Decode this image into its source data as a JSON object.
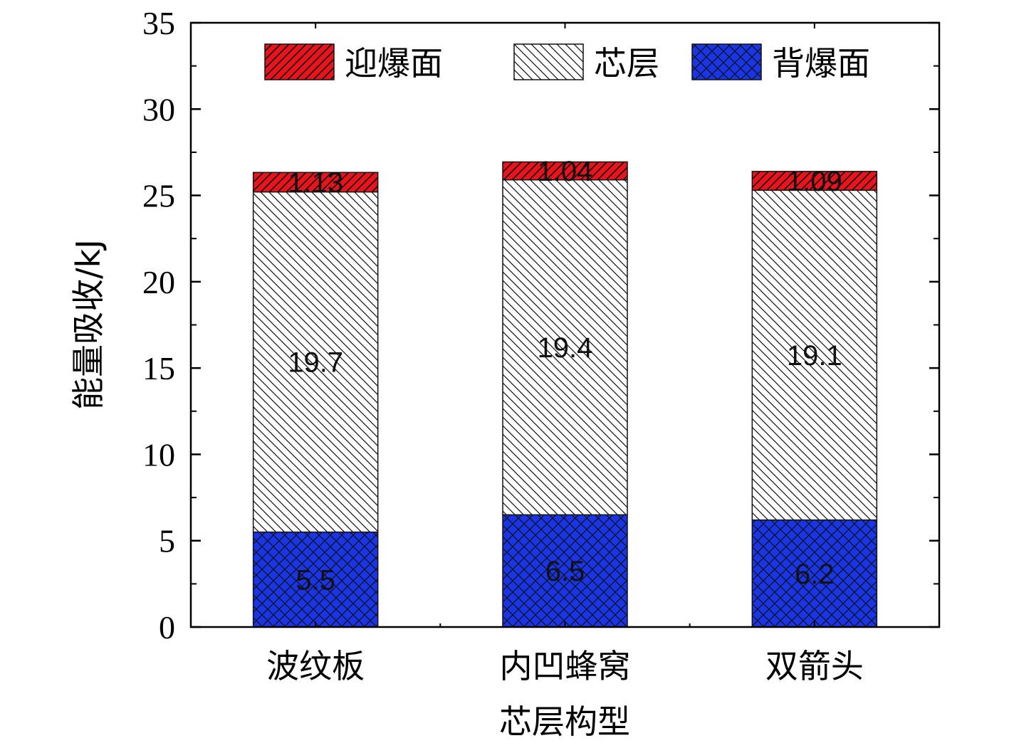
{
  "colors": {
    "front": "#e8141c",
    "core": "#ffffff",
    "back": "#1a35e6",
    "hatch": "#111111"
  },
  "chart_data": {
    "type": "bar",
    "stacked": true,
    "categories": [
      "波纹板",
      "内凹蜂窝",
      "双箭头"
    ],
    "series": [
      {
        "name": "背爆面",
        "values": [
          5.5,
          6.5,
          6.2
        ],
        "labels": [
          "5.5",
          "6.5",
          "6.2"
        ],
        "pattern": "crosshatch",
        "color": "#1a35e6"
      },
      {
        "name": "芯层",
        "values": [
          19.7,
          19.4,
          19.1
        ],
        "labels": [
          "19.7",
          "19.4",
          "19.1"
        ],
        "pattern": "backslash",
        "color": "#ffffff"
      },
      {
        "name": "迎爆面",
        "values": [
          1.13,
          1.04,
          1.09
        ],
        "labels": [
          "1.13",
          "1.04",
          "1.09"
        ],
        "pattern": "slash",
        "color": "#e8141c"
      }
    ],
    "legend_order": [
      "迎爆面",
      "芯层",
      "背爆面"
    ],
    "legend_position": "top",
    "xlabel": "芯层构型",
    "ylabel": "能量吸收/kJ",
    "ylim": [
      0,
      35
    ],
    "yticks": [
      "0",
      "5",
      "10",
      "15",
      "20",
      "25",
      "30",
      "35"
    ],
    "grid": false
  }
}
